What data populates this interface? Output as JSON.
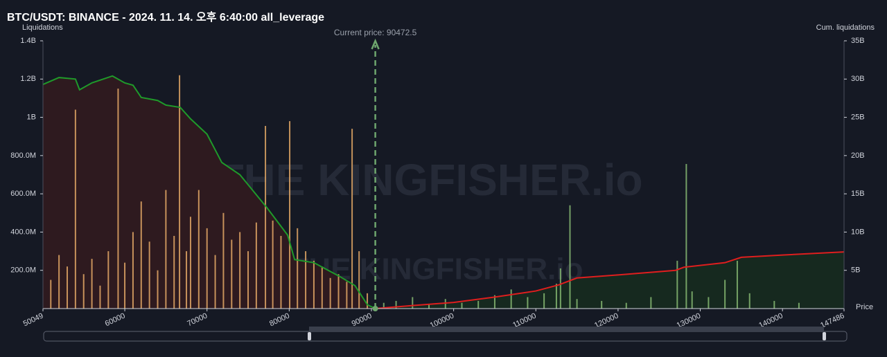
{
  "chart_data": {
    "type": "liquidation",
    "title": "BTC/USDT: BINANCE - 2024. 11. 14. 오후 6:40:00 all_leverage",
    "y_label": "Liquidations",
    "y2_label": "Cum. liquidations",
    "x_label": "Price",
    "watermark": "THE KINGFISHER.io",
    "annotation": {
      "value": 90472.5,
      "label": "Current price: 90472.5"
    },
    "xlim": [
      50049,
      147486
    ],
    "xticks": [
      50049,
      60000,
      70000,
      80000,
      90000,
      100000,
      110000,
      120000,
      130000,
      140000,
      147486
    ],
    "ylim": [
      0,
      1400000000
    ],
    "yticks": [
      {
        "value": 200000000,
        "label": "200.0M"
      },
      {
        "value": 400000000,
        "label": "400.0M"
      },
      {
        "value": 600000000,
        "label": "600.0M"
      },
      {
        "value": 800000000,
        "label": "800.0M"
      },
      {
        "value": 1000000000,
        "label": "1B"
      },
      {
        "value": 1200000000,
        "label": "1.2B"
      },
      {
        "value": 1400000000,
        "label": "1.4B"
      }
    ],
    "y2lim": [
      0,
      35000000000
    ],
    "y2ticks": [
      {
        "value": 5000000000,
        "label": "5B"
      },
      {
        "value": 10000000000,
        "label": "10B"
      },
      {
        "value": 15000000000,
        "label": "15B"
      },
      {
        "value": 20000000000,
        "label": "20B"
      },
      {
        "value": 25000000000,
        "label": "25B"
      },
      {
        "value": 30000000000,
        "label": "30B"
      },
      {
        "value": 35000000000,
        "label": "35B"
      }
    ],
    "series": [
      {
        "type": "bar",
        "color": "#e3a866",
        "x": [
          51000,
          52000,
          53000,
          54000,
          55000,
          56000,
          57000,
          58000,
          59190,
          60000,
          61000,
          62000,
          63000,
          64000,
          65000,
          66000,
          66660,
          67500,
          68000,
          69000,
          70000,
          71000,
          72000,
          73000,
          74000,
          75000,
          76000,
          77110,
          78000,
          79000,
          80060,
          81000,
          82000,
          83000,
          84000,
          85000,
          86000,
          87000,
          87650,
          88500,
          89500
        ],
        "values": [
          150000000,
          280000000,
          220000000,
          1040000000,
          180000000,
          260000000,
          120000000,
          300000000,
          1150000000,
          240000000,
          400000000,
          560000000,
          350000000,
          200000000,
          620000000,
          380000000,
          1220000000,
          300000000,
          480000000,
          620000000,
          420000000,
          280000000,
          500000000,
          360000000,
          400000000,
          300000000,
          450000000,
          955000000,
          460000000,
          380000000,
          980000000,
          420000000,
          300000000,
          250000000,
          220000000,
          160000000,
          180000000,
          140000000,
          940000000,
          300000000,
          80000000
        ]
      },
      {
        "type": "bar",
        "color": "#86b872",
        "x": [
          91500,
          93000,
          95000,
          97000,
          99000,
          101000,
          103000,
          105000,
          107000,
          109000,
          111000,
          112500,
          113000,
          114150,
          115000,
          118000,
          121000,
          124000,
          127200,
          128300,
          129000,
          131000,
          133000,
          134500,
          136000,
          139000,
          142000
        ],
        "values": [
          30000000,
          40000000,
          60000000,
          25000000,
          50000000,
          30000000,
          40000000,
          70000000,
          100000000,
          60000000,
          80000000,
          130000000,
          210000000,
          540000000,
          50000000,
          40000000,
          30000000,
          60000000,
          250000000,
          756000000,
          90000000,
          60000000,
          150000000,
          250000000,
          80000000,
          40000000,
          30000000
        ]
      },
      {
        "type": "line",
        "axis": "y2",
        "color": "#1f9a2a",
        "area": "#2e1a1f",
        "x": [
          50049,
          52000,
          54000,
          54500,
          56000,
          58500,
          60000,
          61000,
          62000,
          64000,
          65000,
          66745,
          68000,
          70000,
          71800,
          74000,
          77280,
          79810,
          80660,
          83000,
          86140,
          88000,
          89510,
          90472.5
        ],
        "values": [
          29300000000,
          30200000000,
          30000000000,
          28600000000,
          29500000000,
          30400000000,
          29500000000,
          29200000000,
          27600000000,
          27200000000,
          26600000000,
          26300000000,
          24800000000,
          22800000000,
          19100000000,
          17500000000,
          13200000000,
          9600000000,
          6400000000,
          6000000000,
          4200000000,
          3000000000,
          500000000,
          0
        ]
      },
      {
        "type": "line",
        "axis": "y2",
        "color": "#e01e1e",
        "area": "#16291f",
        "x": [
          90472.5,
          95000,
          100000,
          105000,
          110000,
          112800,
          115000,
          120000,
          127000,
          128000,
          133000,
          135000,
          140000,
          147486
        ],
        "values": [
          0,
          400000000,
          800000000,
          1500000000,
          2300000000,
          3100000000,
          4000000000,
          4400000000,
          5000000000,
          5400000000,
          6000000000,
          6700000000,
          7000000000,
          7400000000
        ]
      }
    ]
  }
}
